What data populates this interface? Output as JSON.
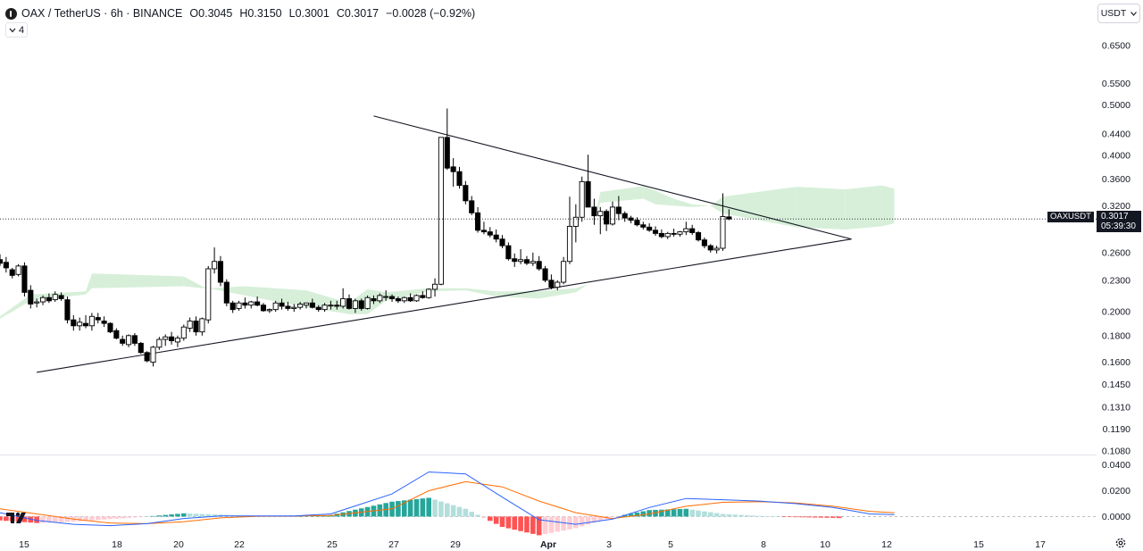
{
  "header": {
    "pair": "OAX / TetherUS",
    "interval": "6h",
    "exchange": "BINANCE",
    "open_k": "O",
    "open": "0.3045",
    "high_k": "H",
    "high": "0.3150",
    "low_k": "L",
    "low": "0.3001",
    "close_k": "C",
    "close": "0.3017",
    "change": "−0.0028 (−0.92%)"
  },
  "indicator_toggle": {
    "count": "4"
  },
  "currency_button": {
    "label": "USDT"
  },
  "last_price": {
    "symbol": "OAXUSDT",
    "price": "0.3017",
    "countdown": "05:39:30"
  },
  "colors": {
    "up_candle": "#ffffff",
    "down_candle": "#000000",
    "candle_outline": "#000000",
    "macd_line": "#2962ff",
    "signal_line": "#ff6d00",
    "hist_up_strong": "#26a69a",
    "hist_up_weak": "#b2dfdb",
    "hist_down_strong": "#ff5252",
    "hist_down_weak": "#ffcdd2",
    "cloud_bull": "#d7efd9",
    "cloud_bear": "#fbdada"
  },
  "chart_data": [
    {
      "type": "candlestick",
      "title": "",
      "yscale": "log",
      "ylim": [
        0.108,
        0.69
      ],
      "price_ticks": [
        "0.6500",
        "0.5500",
        "0.5000",
        "0.4400",
        "0.4000",
        "0.3600",
        "0.3200",
        "0.2600",
        "0.2300",
        "0.2000",
        "0.1800",
        "0.1600",
        "0.1450",
        "0.1310",
        "0.1190",
        "0.1080"
      ],
      "x_ticks": [
        "15",
        "18",
        "20",
        "22",
        "25",
        "27",
        "29",
        "Apr",
        "3",
        "5",
        "8",
        "10",
        "12",
        "15",
        "17"
      ],
      "last_price": 0.3017,
      "candles_ohlc": [
        [
          0.252,
          0.258,
          0.245,
          0.248
        ],
        [
          0.249,
          0.255,
          0.238,
          0.243
        ],
        [
          0.241,
          0.243,
          0.232,
          0.235
        ],
        [
          0.236,
          0.247,
          0.234,
          0.245
        ],
        [
          0.245,
          0.249,
          0.214,
          0.218
        ],
        [
          0.22,
          0.225,
          0.203,
          0.207
        ],
        [
          0.208,
          0.212,
          0.204,
          0.209
        ],
        [
          0.209,
          0.215,
          0.206,
          0.213
        ],
        [
          0.213,
          0.217,
          0.208,
          0.21
        ],
        [
          0.211,
          0.219,
          0.209,
          0.216
        ],
        [
          0.215,
          0.218,
          0.21,
          0.212
        ],
        [
          0.211,
          0.214,
          0.19,
          0.193
        ],
        [
          0.193,
          0.197,
          0.184,
          0.188
        ],
        [
          0.188,
          0.195,
          0.184,
          0.191
        ],
        [
          0.19,
          0.197,
          0.186,
          0.188
        ],
        [
          0.188,
          0.199,
          0.184,
          0.196
        ],
        [
          0.195,
          0.199,
          0.19,
          0.193
        ],
        [
          0.192,
          0.196,
          0.187,
          0.19
        ],
        [
          0.19,
          0.191,
          0.182,
          0.183
        ],
        [
          0.184,
          0.186,
          0.177,
          0.178
        ],
        [
          0.177,
          0.18,
          0.172,
          0.174
        ],
        [
          0.173,
          0.181,
          0.171,
          0.18
        ],
        [
          0.18,
          0.182,
          0.172,
          0.174
        ],
        [
          0.174,
          0.175,
          0.166,
          0.167
        ],
        [
          0.167,
          0.168,
          0.16,
          0.161
        ],
        [
          0.16,
          0.172,
          0.157,
          0.171
        ],
        [
          0.171,
          0.179,
          0.169,
          0.177
        ],
        [
          0.177,
          0.181,
          0.172,
          0.179
        ],
        [
          0.179,
          0.183,
          0.173,
          0.176
        ],
        [
          0.175,
          0.18,
          0.171,
          0.178
        ],
        [
          0.178,
          0.189,
          0.176,
          0.187
        ],
        [
          0.186,
          0.195,
          0.183,
          0.192
        ],
        [
          0.192,
          0.196,
          0.18,
          0.183
        ],
        [
          0.183,
          0.195,
          0.18,
          0.194
        ],
        [
          0.193,
          0.245,
          0.19,
          0.242
        ],
        [
          0.242,
          0.266,
          0.237,
          0.25
        ],
        [
          0.25,
          0.256,
          0.224,
          0.228
        ],
        [
          0.228,
          0.231,
          0.205,
          0.208
        ],
        [
          0.208,
          0.21,
          0.199,
          0.202
        ],
        [
          0.203,
          0.21,
          0.201,
          0.208
        ],
        [
          0.208,
          0.213,
          0.203,
          0.206
        ],
        [
          0.206,
          0.21,
          0.203,
          0.209
        ],
        [
          0.209,
          0.214,
          0.205,
          0.206
        ],
        [
          0.206,
          0.208,
          0.2,
          0.201
        ],
        [
          0.201,
          0.203,
          0.199,
          0.202
        ],
        [
          0.202,
          0.21,
          0.2,
          0.208
        ],
        [
          0.208,
          0.212,
          0.202,
          0.205
        ],
        [
          0.205,
          0.209,
          0.201,
          0.203
        ],
        [
          0.203,
          0.207,
          0.2,
          0.204
        ],
        [
          0.204,
          0.209,
          0.202,
          0.207
        ],
        [
          0.206,
          0.208,
          0.203,
          0.208
        ],
        [
          0.208,
          0.212,
          0.203,
          0.204
        ],
        [
          0.204,
          0.206,
          0.2,
          0.202
        ],
        [
          0.202,
          0.208,
          0.2,
          0.206
        ],
        [
          0.206,
          0.21,
          0.202,
          0.206
        ],
        [
          0.206,
          0.21,
          0.202,
          0.205
        ],
        [
          0.205,
          0.222,
          0.203,
          0.212
        ],
        [
          0.212,
          0.216,
          0.202,
          0.203
        ],
        [
          0.203,
          0.212,
          0.199,
          0.21
        ],
        [
          0.21,
          0.212,
          0.201,
          0.203
        ],
        [
          0.203,
          0.215,
          0.202,
          0.213
        ],
        [
          0.212,
          0.215,
          0.207,
          0.21
        ],
        [
          0.21,
          0.217,
          0.208,
          0.215
        ],
        [
          0.214,
          0.22,
          0.21,
          0.214
        ],
        [
          0.214,
          0.216,
          0.209,
          0.212
        ],
        [
          0.212,
          0.214,
          0.208,
          0.21
        ],
        [
          0.21,
          0.214,
          0.208,
          0.213
        ],
        [
          0.213,
          0.217,
          0.209,
          0.21
        ],
        [
          0.21,
          0.216,
          0.209,
          0.215
        ],
        [
          0.215,
          0.219,
          0.212,
          0.213
        ],
        [
          0.213,
          0.222,
          0.212,
          0.221
        ],
        [
          0.221,
          0.232,
          0.214,
          0.226
        ],
        [
          0.226,
          0.433,
          0.225,
          0.433
        ],
        [
          0.433,
          0.492,
          0.375,
          0.378
        ],
        [
          0.38,
          0.395,
          0.348,
          0.372
        ],
        [
          0.372,
          0.38,
          0.345,
          0.35
        ],
        [
          0.35,
          0.357,
          0.322,
          0.327
        ],
        [
          0.327,
          0.334,
          0.307,
          0.31
        ],
        [
          0.31,
          0.318,
          0.284,
          0.287
        ],
        [
          0.287,
          0.298,
          0.282,
          0.285
        ],
        [
          0.285,
          0.291,
          0.278,
          0.281
        ],
        [
          0.281,
          0.288,
          0.272,
          0.276
        ],
        [
          0.276,
          0.281,
          0.265,
          0.268
        ],
        [
          0.268,
          0.272,
          0.251,
          0.253
        ],
        [
          0.253,
          0.259,
          0.244,
          0.25
        ],
        [
          0.25,
          0.264,
          0.247,
          0.252
        ],
        [
          0.252,
          0.256,
          0.246,
          0.248
        ],
        [
          0.248,
          0.26,
          0.245,
          0.25
        ],
        [
          0.25,
          0.256,
          0.24,
          0.242
        ],
        [
          0.242,
          0.245,
          0.228,
          0.23
        ],
        [
          0.23,
          0.236,
          0.221,
          0.223
        ],
        [
          0.223,
          0.23,
          0.22,
          0.228
        ],
        [
          0.228,
          0.255,
          0.226,
          0.25
        ],
        [
          0.25,
          0.333,
          0.247,
          0.292
        ],
        [
          0.292,
          0.322,
          0.272,
          0.304
        ],
        [
          0.304,
          0.364,
          0.298,
          0.356
        ],
        [
          0.356,
          0.401,
          0.318,
          0.318
        ],
        [
          0.318,
          0.33,
          0.294,
          0.306
        ],
        [
          0.306,
          0.318,
          0.282,
          0.312
        ],
        [
          0.312,
          0.315,
          0.286,
          0.295
        ],
        [
          0.295,
          0.326,
          0.293,
          0.318
        ],
        [
          0.318,
          0.334,
          0.3,
          0.309
        ],
        [
          0.309,
          0.312,
          0.298,
          0.303
        ],
        [
          0.303,
          0.306,
          0.296,
          0.3
        ],
        [
          0.3,
          0.304,
          0.292,
          0.294
        ],
        [
          0.294,
          0.298,
          0.288,
          0.291
        ],
        [
          0.291,
          0.296,
          0.285,
          0.287
        ],
        [
          0.287,
          0.292,
          0.28,
          0.283
        ],
        [
          0.283,
          0.288,
          0.277,
          0.279
        ],
        [
          0.279,
          0.285,
          0.276,
          0.283
        ],
        [
          0.283,
          0.289,
          0.279,
          0.282
        ],
        [
          0.282,
          0.286,
          0.279,
          0.285
        ],
        [
          0.285,
          0.298,
          0.281,
          0.289
        ],
        [
          0.289,
          0.294,
          0.281,
          0.284
        ],
        [
          0.284,
          0.286,
          0.273,
          0.275
        ],
        [
          0.275,
          0.278,
          0.265,
          0.268
        ],
        [
          0.268,
          0.27,
          0.26,
          0.263
        ],
        [
          0.263,
          0.268,
          0.259,
          0.265
        ],
        [
          0.265,
          0.338,
          0.262,
          0.305
        ],
        [
          0.3045,
          0.315,
          0.3001,
          0.3017
        ]
      ],
      "trendlines": [
        {
          "name": "upper",
          "from": [
            61,
            0.476
          ],
          "to": [
            139,
            0.276
          ]
        },
        {
          "name": "lower",
          "from": [
            6,
            0.153
          ],
          "to": [
            139,
            0.276
          ]
        }
      ],
      "cloud": [
        [
          -3,
          0.185,
          0.185
        ],
        [
          5,
          0.216,
          0.21
        ],
        [
          14,
          0.219,
          0.216
        ],
        [
          15,
          0.237,
          0.222
        ],
        [
          30,
          0.234,
          0.224
        ],
        [
          33,
          0.224,
          0.222
        ],
        [
          34,
          0.222,
          0.222
        ],
        [
          40,
          0.224,
          0.215
        ],
        [
          50,
          0.22,
          0.204
        ],
        [
          57,
          0.208,
          0.198
        ],
        [
          60,
          0.221,
          0.198
        ],
        [
          63,
          0.218,
          0.21
        ],
        [
          70,
          0.222,
          0.219
        ],
        [
          76,
          0.222,
          0.22
        ],
        [
          81,
          0.219,
          0.214
        ],
        [
          88,
          0.219,
          0.212
        ],
        [
          94,
          0.222,
          0.218
        ],
        [
          96,
          0.226,
          0.226
        ],
        [
          97,
          0.298,
          0.298
        ],
        [
          98,
          0.34,
          0.324
        ],
        [
          105,
          0.349,
          0.33
        ],
        [
          107,
          0.342,
          0.322
        ],
        [
          110,
          0.33,
          0.32
        ],
        [
          113,
          0.322,
          0.318
        ],
        [
          116,
          0.32,
          0.32
        ],
        [
          118,
          0.333,
          0.309
        ],
        [
          130,
          0.348,
          0.291
        ],
        [
          138,
          0.344,
          0.288
        ],
        [
          144,
          0.35,
          0.292
        ],
        [
          146,
          0.345,
          0.296
        ]
      ]
    },
    {
      "type": "line",
      "title": "",
      "ylim": [
        -0.008,
        0.048
      ],
      "y_ticks": [
        "0.0400",
        "0.0200",
        "0.0000"
      ],
      "series": [
        {
          "values": [
            0.003,
            -0.003,
            -0.006,
            -0.007,
            -0.0055,
            -0.0015,
            0.0005,
            0.0005,
            0.0005,
            0.002,
            0.0175,
            0.0345,
            0.033,
            0.015,
            -0.0025,
            -0.006,
            -0.002,
            0.007,
            0.014,
            0.013,
            0.012,
            0.01,
            0.007,
            0.002,
            0.0015
          ]
        },
        {
          "values": [
            0.006,
            0.002,
            -0.002,
            -0.005,
            -0.0055,
            -0.004,
            -0.001,
            0.0002,
            0.0004,
            0.0008,
            0.006,
            0.02,
            0.027,
            0.023,
            0.012,
            0.003,
            -0.0015,
            0.002,
            0.008,
            0.011,
            0.0115,
            0.0105,
            0.008,
            0.004,
            0.003
          ]
        }
      ],
      "x_index": [
        0,
        6,
        12,
        18,
        24,
        30,
        36,
        42,
        48,
        54,
        64,
        70,
        76,
        82,
        88,
        94,
        100,
        106,
        112,
        118,
        124,
        130,
        136,
        142,
        146
      ]
    }
  ]
}
